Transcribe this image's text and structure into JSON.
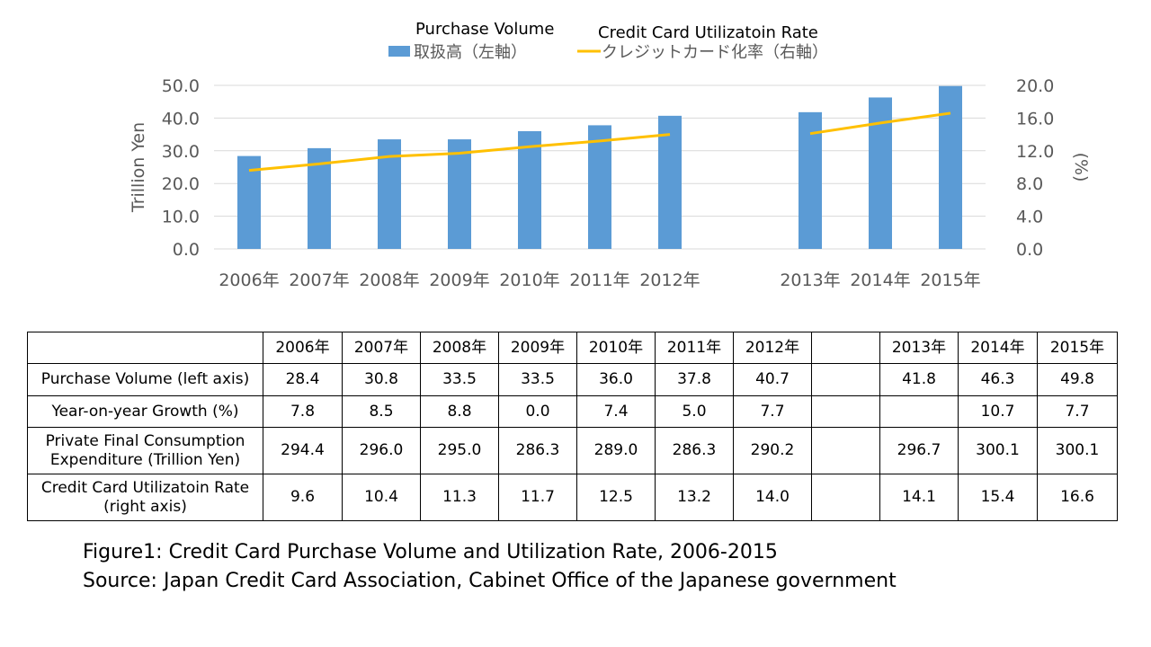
{
  "chart_data": {
    "type": "bar",
    "categories": [
      "2006年",
      "2007年",
      "2008年",
      "2009年",
      "2010年",
      "2011年",
      "2012年",
      "",
      "2013年",
      "2014年",
      "2015年"
    ],
    "series": [
      {
        "name": "取扱高（左軸）",
        "title": "Purchase Volume",
        "kind": "bar",
        "axis": "left",
        "color": "#5B9BD5",
        "values": [
          28.4,
          30.8,
          33.5,
          33.5,
          36.0,
          37.8,
          40.7,
          null,
          41.8,
          46.3,
          49.8
        ]
      },
      {
        "name": "クレジットカード化率（右軸）",
        "title": "Credit Card Utilizatoin Rate",
        "kind": "line",
        "axis": "right",
        "color": "#FFC000",
        "values": [
          9.6,
          10.4,
          11.3,
          11.7,
          12.5,
          13.2,
          14.0,
          null,
          14.1,
          15.4,
          16.6
        ]
      }
    ],
    "ylabel": "Trillion Yen",
    "y2label": "(%)",
    "ylim": [
      0,
      50
    ],
    "yticks": [
      "0.0",
      "10.0",
      "20.0",
      "30.0",
      "40.0",
      "50.0"
    ],
    "y2lim": [
      0,
      20
    ],
    "y2ticks": [
      "0.0",
      "4.0",
      "8.0",
      "12.0",
      "16.0",
      "20.0"
    ],
    "grid": true,
    "legend": "top"
  },
  "table": {
    "headers": [
      "2006年",
      "2007年",
      "2008年",
      "2009年",
      "2010年",
      "2011年",
      "2012年",
      "",
      "2013年",
      "2014年",
      "2015年"
    ],
    "rows": [
      {
        "label": "Purchase Volume (left axis)",
        "cells": [
          "28.4",
          "30.8",
          "33.5",
          "33.5",
          "36.0",
          "37.8",
          "40.7",
          "",
          "41.8",
          "46.3",
          "49.8"
        ]
      },
      {
        "label": "Year-on-year Growth (%)",
        "cells": [
          "7.8",
          "8.5",
          "8.8",
          "0.0",
          "7.4",
          "5.0",
          "7.7",
          "",
          "",
          "10.7",
          "7.7"
        ]
      },
      {
        "label": "Private Final Consumption Expenditure (Trillion Yen)",
        "cells": [
          "294.4",
          "296.0",
          "295.0",
          "286.3",
          "289.0",
          "286.3",
          "290.2",
          "",
          "296.7",
          "300.1",
          "300.1"
        ]
      },
      {
        "label": "Credit Card Utilizatoin Rate (right axis)",
        "cells": [
          "9.6",
          "10.4",
          "11.3",
          "11.7",
          "12.5",
          "13.2",
          "14.0",
          "",
          "14.1",
          "15.4",
          "16.6"
        ]
      }
    ]
  },
  "caption": {
    "line1": "Figure1: Credit Card Purchase Volume and Utilization Rate, 2006-2015",
    "line2": "Source: Japan Credit Card Association, Cabinet Office of the Japanese government"
  }
}
